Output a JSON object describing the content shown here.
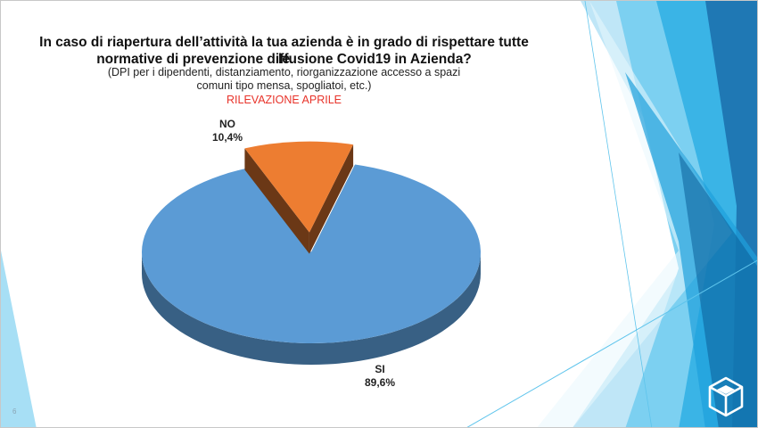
{
  "slide": {
    "page_number": "6",
    "title_line1": "In caso di riapertura dell’attività la tua azienda è in grado di rispettare tutte le",
    "title_line2": "normative di prevenzione diffusione Covid19 in Azienda?",
    "subtitle_line1": "(DPI per i dipendenti, distanziamento, riorganizzazione accesso a spazi",
    "subtitle_line2": "comuni tipo mensa, spogliatoi, etc.)",
    "survey_label": "RILEVAZIONE APRILE",
    "survey_label_color": "#e8332a",
    "logo_icon": "cube-logo-icon"
  },
  "chart_data": {
    "type": "pie",
    "title": "In caso di riapertura dell’attività la tua azienda è in grado di rispettare tutte le normative di prevenzione diffusione Covid19 in Azienda?",
    "subtitle": "(DPI per i dipendenti, distanziamento, riorganizzazione accesso a spazi comuni tipo mensa, spogliatoi, etc.)",
    "style": "3d-exploded",
    "categories": [
      "SI",
      "NO"
    ],
    "values": [
      89.6,
      10.4
    ],
    "data_labels": [
      "89,6%",
      "10,4%"
    ],
    "colors": [
      "#5b9bd5",
      "#ed7d31"
    ],
    "legend": "none"
  }
}
